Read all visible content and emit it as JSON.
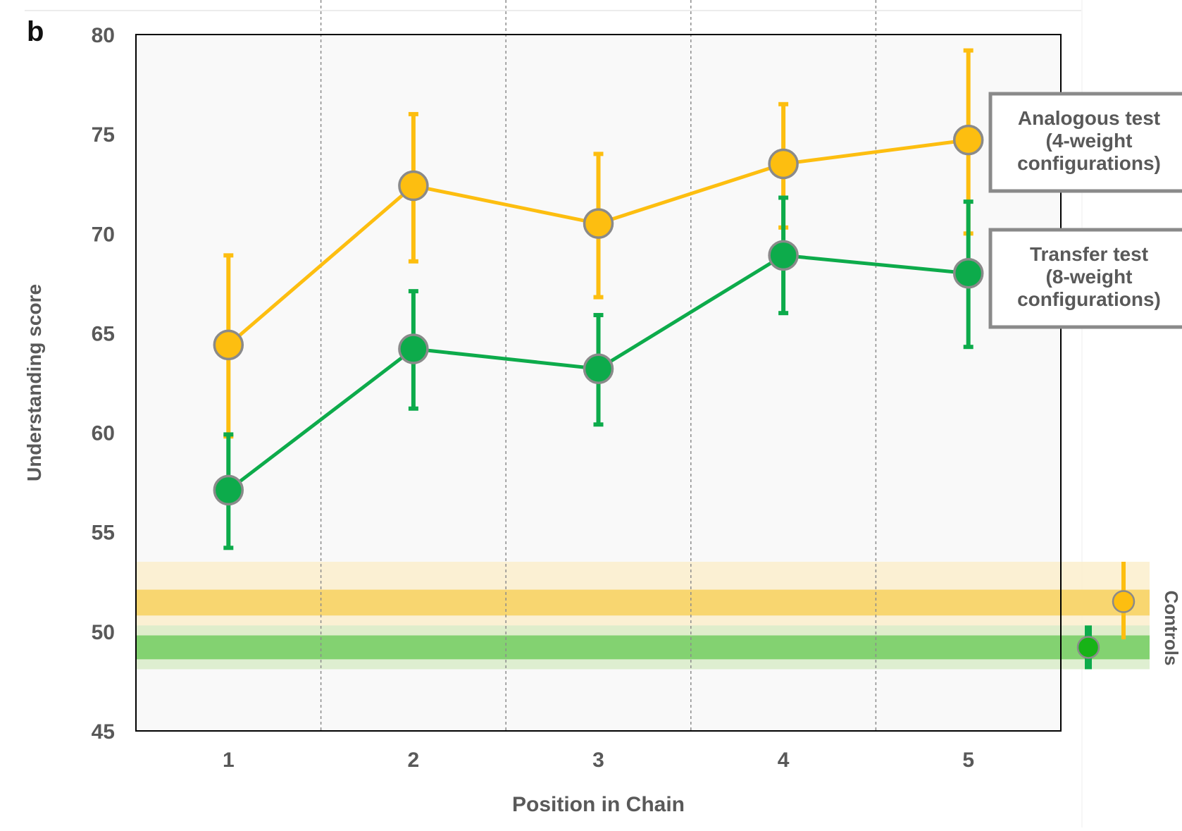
{
  "panel_label": "b",
  "chart_data": {
    "type": "line",
    "xlabel": "Position in Chain",
    "ylabel": "Understanding score",
    "x": [
      1,
      2,
      3,
      4,
      5
    ],
    "x_tick_labels": [
      "1",
      "2",
      "3",
      "4",
      "5"
    ],
    "ylim": [
      45,
      80
    ],
    "y_ticks": [
      45,
      50,
      55,
      60,
      65,
      70,
      75,
      80
    ],
    "grid": "vertical dotted separators between positions",
    "series": [
      {
        "name": "Analogous test (4-weight configurations)",
        "label_lines": [
          "Analogous test",
          "(4-weight",
          "configurations)"
        ],
        "color": "#FDBE10",
        "values": [
          64.4,
          72.4,
          70.5,
          73.5,
          74.7
        ],
        "err_low": [
          59.8,
          68.6,
          66.8,
          70.3,
          70.0
        ],
        "err_high": [
          68.9,
          76.0,
          74.0,
          76.5,
          79.2
        ]
      },
      {
        "name": "Transfer test (8-weight configurations)",
        "label_lines": [
          "Transfer test",
          "(8-weight",
          "configurations)"
        ],
        "color": "#0DAB4B",
        "values": [
          57.1,
          64.2,
          63.2,
          68.9,
          68.0
        ],
        "err_low": [
          54.2,
          61.2,
          60.4,
          66.0,
          64.3
        ],
        "err_high": [
          59.9,
          67.1,
          65.9,
          71.8,
          71.6
        ]
      }
    ],
    "controls": {
      "label": "Controls",
      "analogous": {
        "value": 51.5,
        "err_low": 49.6,
        "err_high": 53.5,
        "band_inner": [
          50.8,
          52.1
        ],
        "band_outer": [
          49.6,
          53.5
        ],
        "color": "#FDBE10"
      },
      "transfer": {
        "value": 49.2,
        "err_low": 48.1,
        "err_high": 50.3,
        "band_inner": [
          48.6,
          49.8
        ],
        "band_outer": [
          48.1,
          50.3
        ],
        "color": "#0DAB4B"
      }
    }
  }
}
